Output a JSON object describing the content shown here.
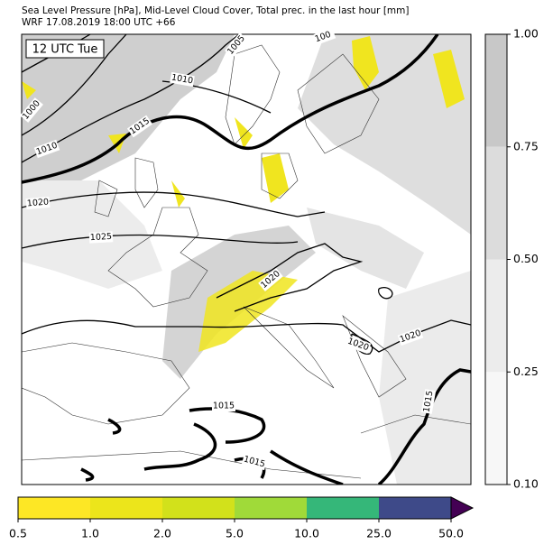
{
  "header": {
    "title": "Sea Level Pressure [hPa], Mid-Level Cloud Cover, Total prec. in the last hour [mm]",
    "subtitle": "WRF 17.08.2019 18:00 UTC +66"
  },
  "map": {
    "time_label": "12 UTC Tue",
    "contour_labels": [
      "1005",
      "1010",
      "1000",
      "1010",
      "1015",
      "1020",
      "1025",
      "1020",
      "1020",
      "1020",
      "1015",
      "1015",
      "1015",
      "100"
    ]
  },
  "cloud_colorbar": {
    "ticks": [
      "1.00",
      "0.75",
      "0.50",
      "0.25",
      "0.10"
    ],
    "colors": [
      "#c8c8c8",
      "#dcdcdc",
      "#ececec",
      "#f7f7f7"
    ]
  },
  "precip_colorbar": {
    "ticks": [
      "0.5",
      "1.0",
      "2.0",
      "5.0",
      "10.0",
      "25.0",
      "50.0"
    ],
    "colors": [
      "#fde725",
      "#ece51b",
      "#d2e11b",
      "#a0da39",
      "#35b779",
      "#3e4a89"
    ],
    "extend_color": "#440154"
  }
}
